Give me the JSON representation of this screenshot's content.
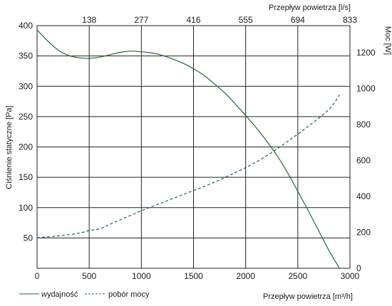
{
  "chart_data": {
    "type": "line",
    "xlabel": "Przepływ powietrza [m³/h]",
    "x2label": "Przepływ powietrza [l/s]",
    "ylabel": "Ciśnienie statyczne [Pa]",
    "y2label": "Moc [W]",
    "xlim": [
      0,
      3000
    ],
    "ylim": [
      0,
      400
    ],
    "y2lim": [
      0,
      1350
    ],
    "x_ticks": [
      0,
      500,
      1000,
      1500,
      2000,
      2500,
      3000
    ],
    "y_ticks": [
      50,
      100,
      150,
      200,
      250,
      300,
      350,
      400
    ],
    "y2_ticks": [
      0,
      200,
      400,
      600,
      800,
      1000,
      1200
    ],
    "x2_ticks": [
      {
        "label": "138",
        "at": 500
      },
      {
        "label": "277",
        "at": 1000
      },
      {
        "label": "416",
        "at": 1500
      },
      {
        "label": "555",
        "at": 2000
      },
      {
        "label": "694",
        "at": 2500
      },
      {
        "label": "833",
        "at": 3000
      }
    ],
    "grid": true,
    "legend_position": "bottom-left",
    "series": [
      {
        "name": "wydajność",
        "style": "solid",
        "axis": "left",
        "color": "#1e6b34",
        "x": [
          0,
          100,
          200,
          300,
          400,
          500,
          600,
          700,
          800,
          900,
          1000,
          1100,
          1200,
          1300,
          1400,
          1500,
          1600,
          1700,
          1800,
          1900,
          2000,
          2100,
          2200,
          2300,
          2400,
          2500,
          2600,
          2700,
          2800,
          2900
        ],
        "y": [
          393,
          375,
          360,
          351,
          347,
          346,
          348,
          352,
          356,
          358,
          357,
          355,
          351,
          345,
          338,
          329,
          318,
          304,
          289,
          271,
          252,
          232,
          210,
          186,
          158,
          127,
          95,
          62,
          29,
          0
        ]
      },
      {
        "name": "pobór mocy",
        "style": "dashed",
        "axis": "right",
        "color": "#1e6b34",
        "x": [
          0,
          200,
          400,
          500,
          600,
          700,
          800,
          900,
          1000,
          1200,
          1400,
          1600,
          1800,
          2000,
          2200,
          2400,
          2600,
          2800,
          2900
        ],
        "y": [
          170,
          180,
          195,
          210,
          220,
          245,
          270,
          295,
          320,
          365,
          410,
          455,
          505,
          560,
          625,
          705,
          790,
          885,
          965
        ]
      }
    ]
  }
}
